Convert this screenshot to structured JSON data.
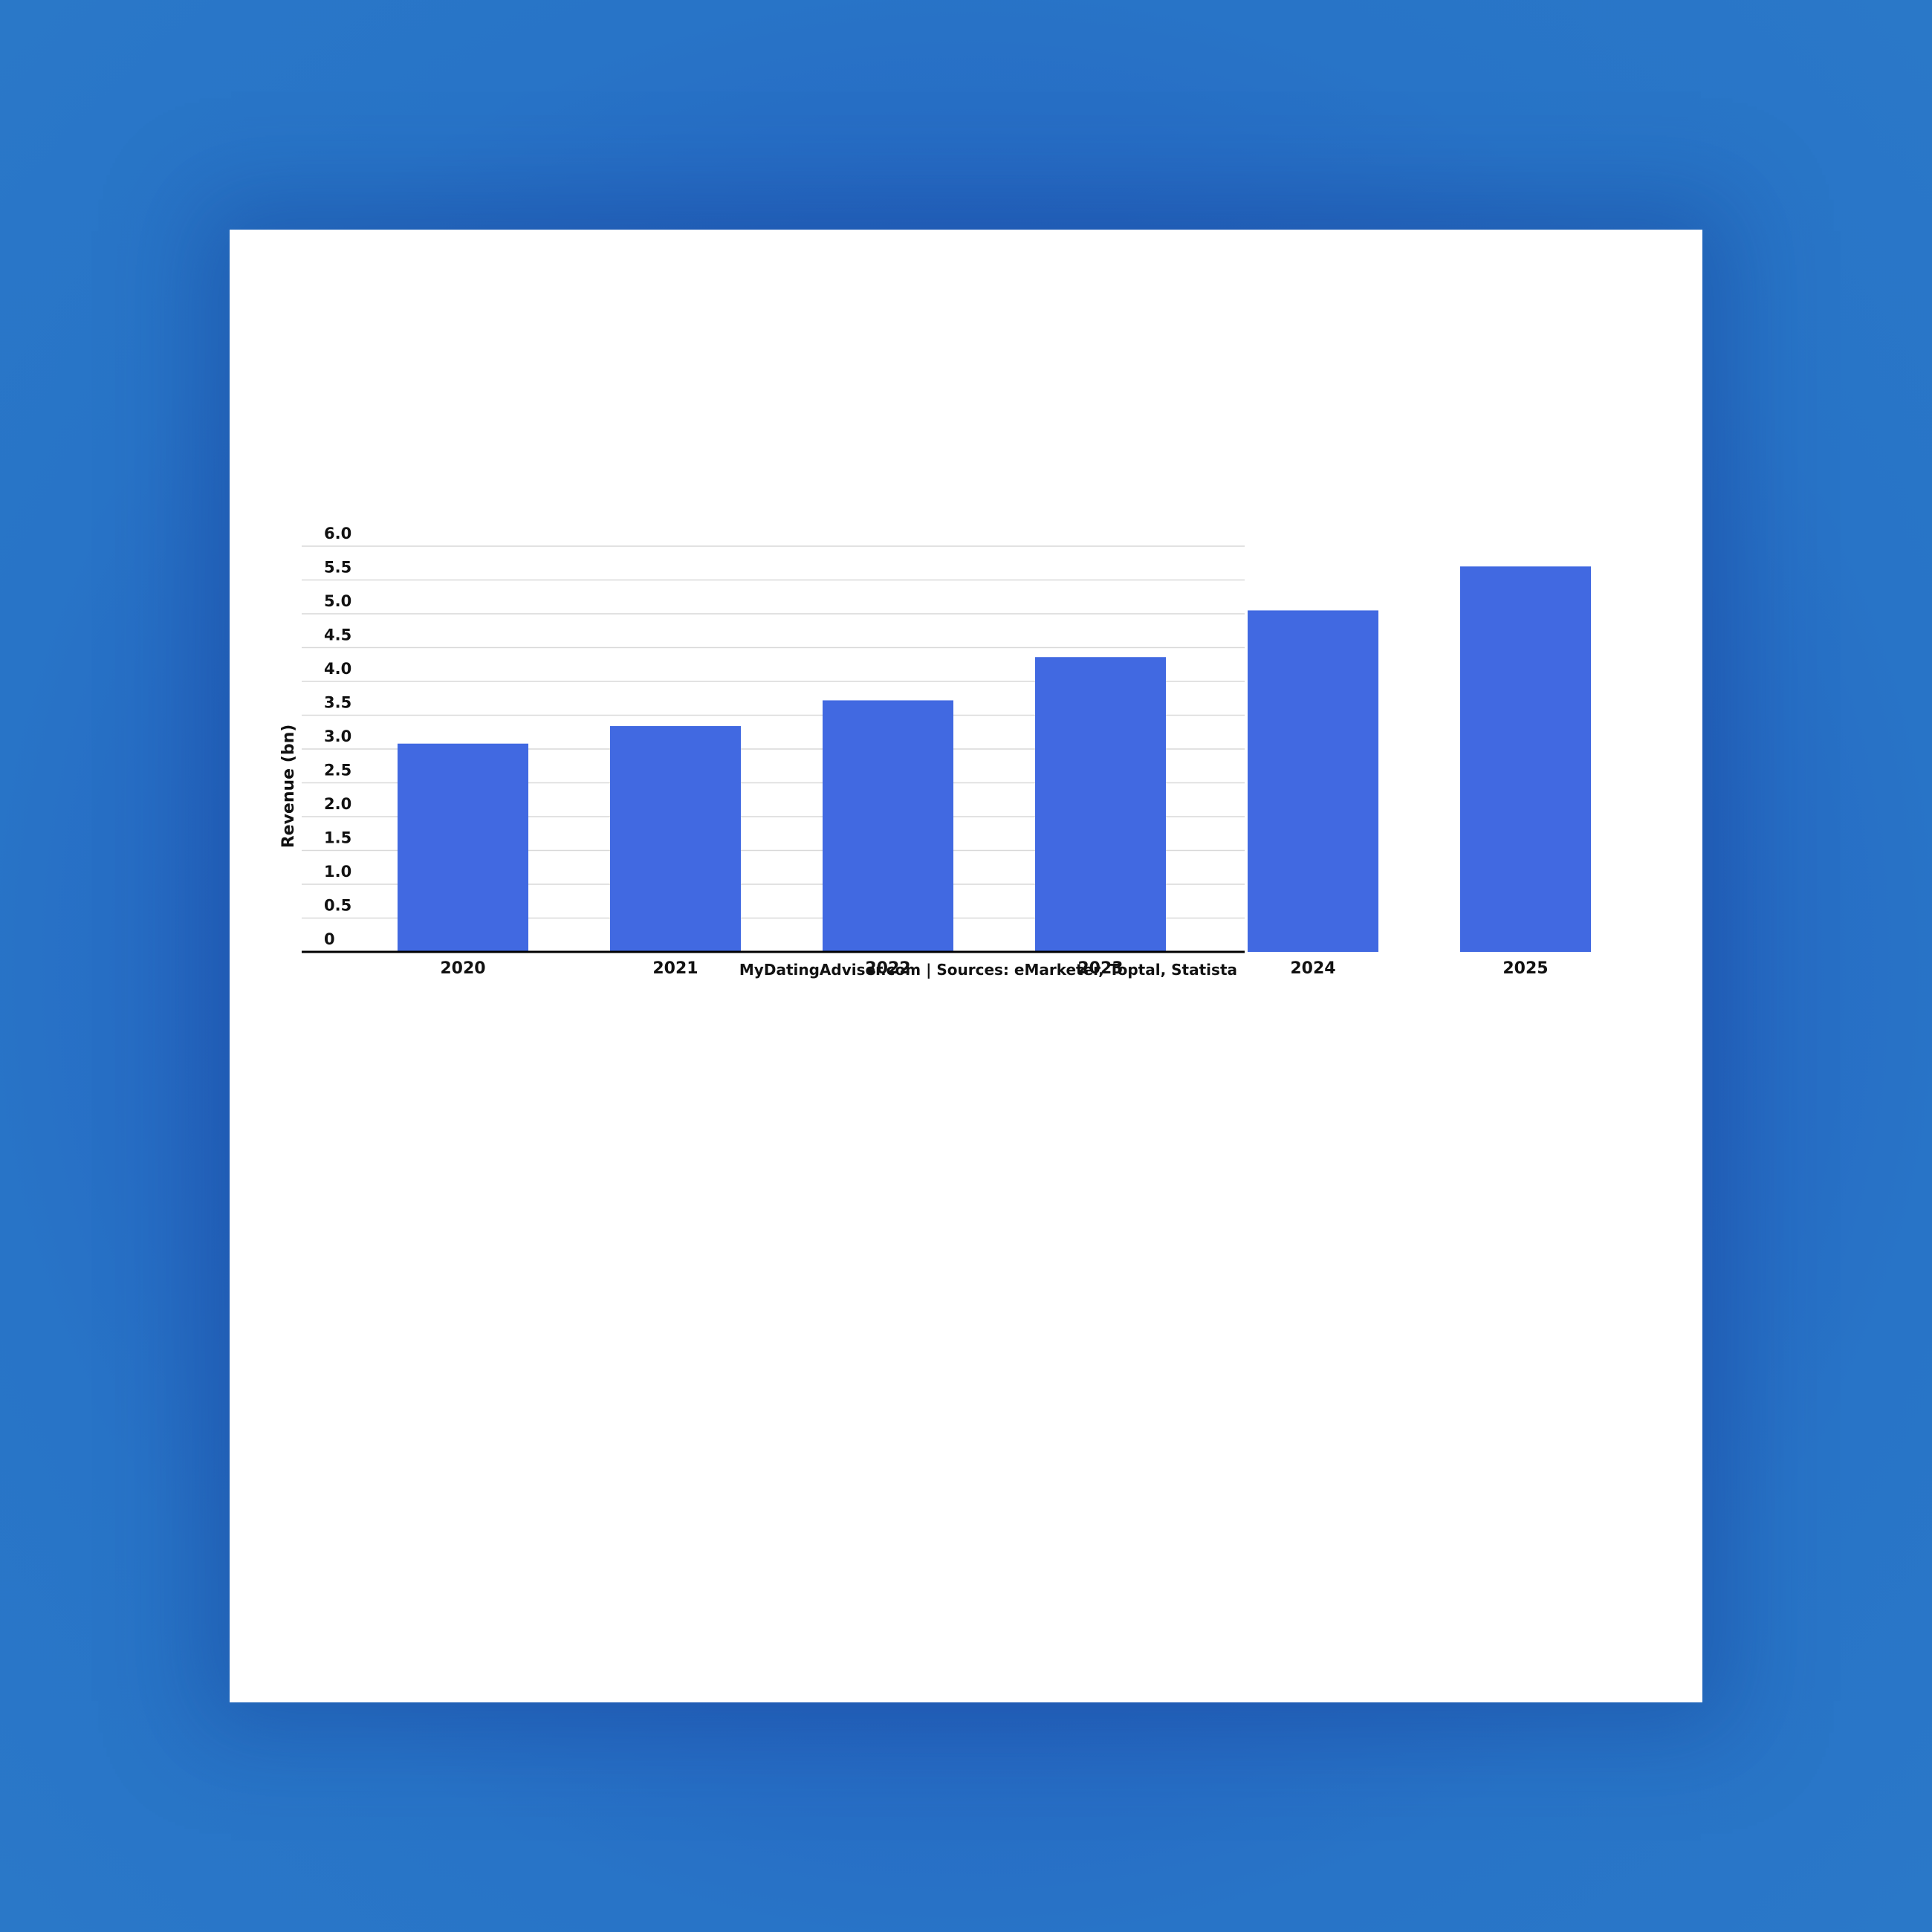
{
  "colors": {
    "background": "#2562c0",
    "card": "#ffffff",
    "bar": "#4169e1",
    "grid": "#d9d9d9",
    "axis": "#000000",
    "text": "#111111"
  },
  "source_note": "MyDatingAdviser.com | Sources: eMarketer, Toptal, Statista",
  "chart_data": {
    "type": "bar",
    "title": "",
    "xlabel": "",
    "ylabel": "Revenue (bn)",
    "categories": [
      "2020",
      "2021",
      "2022",
      "2023",
      "2024",
      "2025"
    ],
    "values": [
      3.08,
      3.34,
      3.72,
      4.36,
      5.05,
      5.7
    ],
    "ylim": [
      0,
      6.0
    ],
    "yticks": [
      "0",
      "0.5",
      "1.0",
      "1.5",
      "2.0",
      "2.5",
      "3.0",
      "3.5",
      "4.0",
      "4.5",
      "5.0",
      "5.5",
      "6.0"
    ],
    "grid": true,
    "legend": "none"
  }
}
